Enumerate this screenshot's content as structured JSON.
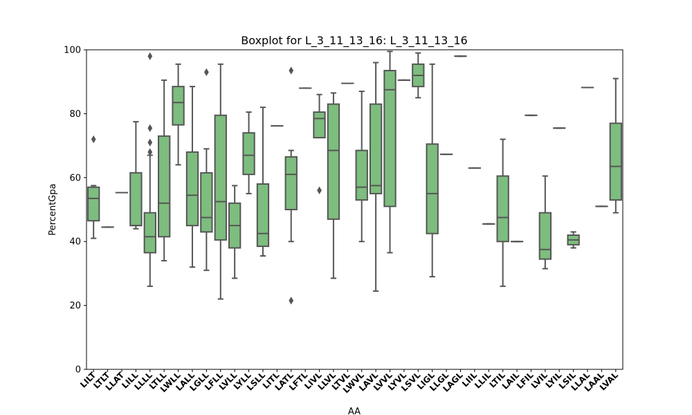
{
  "chart_data": {
    "type": "box",
    "title": "Boxplot for L_3_11_13_16: L_3_11_13_16",
    "xlabel": "AA",
    "ylabel": "PercentGpa",
    "ylim": [
      0,
      100
    ],
    "yticks": [
      0,
      20,
      40,
      60,
      80,
      100
    ],
    "grid": false,
    "colors": {
      "box_fill": "#7dbd7e",
      "box_edge": "#555555"
    },
    "categories": [
      "LILT",
      "LTLT",
      "LLAT",
      "LILL",
      "LLLL",
      "LTLL",
      "LWLL",
      "LALL",
      "LGLL",
      "LFLL",
      "LVLL",
      "LYLL",
      "LSLL",
      "LITL",
      "LATL",
      "LFTL",
      "LIVL",
      "LLVL",
      "LTVL",
      "LWVL",
      "LAVL",
      "LVVL",
      "LYVL",
      "LSVL",
      "LIGL",
      "LLGL",
      "LAGL",
      "LIIL",
      "LLIL",
      "LTIL",
      "LAIL",
      "LFIL",
      "LVIL",
      "LYIL",
      "LSIL",
      "LLAL",
      "LAAL",
      "LVAL"
    ],
    "boxes": [
      {
        "whislo": 41,
        "q1": 46.5,
        "med": 53.5,
        "q3": 57,
        "whishi": 57.5,
        "fliers": [
          72
        ]
      },
      {
        "whislo": 44.5,
        "q1": 44.5,
        "med": 44.5,
        "q3": 44.5,
        "whishi": 44.5,
        "fliers": []
      },
      {
        "whislo": 55.3,
        "q1": 55.3,
        "med": 55.3,
        "q3": 55.3,
        "whishi": 55.3,
        "fliers": []
      },
      {
        "whislo": 44,
        "q1": 45,
        "med": 45,
        "q3": 61.5,
        "whishi": 77.5,
        "fliers": []
      },
      {
        "whislo": 26,
        "q1": 36.5,
        "med": 41.5,
        "q3": 49,
        "whishi": 67,
        "fliers": [
          68,
          71,
          75.5,
          98
        ]
      },
      {
        "whislo": 34,
        "q1": 41.5,
        "med": 52,
        "q3": 73,
        "whishi": 90.5,
        "fliers": []
      },
      {
        "whislo": 64,
        "q1": 76.5,
        "med": 83.5,
        "q3": 88.5,
        "whishi": 95.5,
        "fliers": []
      },
      {
        "whislo": 32,
        "q1": 45,
        "med": 54.5,
        "q3": 68,
        "whishi": 88.5,
        "fliers": []
      },
      {
        "whislo": 31,
        "q1": 43,
        "med": 47.5,
        "q3": 61.5,
        "whishi": 69,
        "fliers": [
          93
        ]
      },
      {
        "whislo": 22,
        "q1": 40.5,
        "med": 52.5,
        "q3": 79.5,
        "whishi": 95.5,
        "fliers": []
      },
      {
        "whislo": 28.5,
        "q1": 38,
        "med": 45,
        "q3": 52,
        "whishi": 57.5,
        "fliers": []
      },
      {
        "whislo": 55,
        "q1": 61,
        "med": 67,
        "q3": 74,
        "whishi": 80.5,
        "fliers": []
      },
      {
        "whislo": 35.5,
        "q1": 38.5,
        "med": 42.5,
        "q3": 58,
        "whishi": 82,
        "fliers": []
      },
      {
        "whislo": 76.2,
        "q1": 76.2,
        "med": 76.2,
        "q3": 76.2,
        "whishi": 76.2,
        "fliers": []
      },
      {
        "whislo": 40,
        "q1": 50,
        "med": 61,
        "q3": 66.5,
        "whishi": 68.5,
        "fliers": [
          21.5,
          93.5
        ]
      },
      {
        "whislo": 88,
        "q1": 88,
        "med": 88,
        "q3": 88,
        "whishi": 88,
        "fliers": []
      },
      {
        "whislo": 72.5,
        "q1": 72.5,
        "med": 78.5,
        "q3": 80.5,
        "whishi": 86,
        "fliers": [
          56
        ]
      },
      {
        "whislo": 28.5,
        "q1": 47,
        "med": 68.5,
        "q3": 83,
        "whishi": 86.5,
        "fliers": []
      },
      {
        "whislo": 89.5,
        "q1": 89.5,
        "med": 89.5,
        "q3": 89.5,
        "whishi": 89.5,
        "fliers": []
      },
      {
        "whislo": 40,
        "q1": 53,
        "med": 57,
        "q3": 68.5,
        "whishi": 87,
        "fliers": []
      },
      {
        "whislo": 24.5,
        "q1": 55,
        "med": 57.5,
        "q3": 83,
        "whishi": 96,
        "fliers": []
      },
      {
        "whislo": 36.5,
        "q1": 51,
        "med": 87.5,
        "q3": 93.5,
        "whishi": 99.5,
        "fliers": []
      },
      {
        "whislo": 90.5,
        "q1": 90.5,
        "med": 90.5,
        "q3": 90.5,
        "whishi": 90.5,
        "fliers": []
      },
      {
        "whislo": 85,
        "q1": 88.5,
        "med": 92,
        "q3": 95.5,
        "whishi": 99,
        "fliers": []
      },
      {
        "whislo": 29,
        "q1": 42.5,
        "med": 55,
        "q3": 70.5,
        "whishi": 95.5,
        "fliers": []
      },
      {
        "whislo": 67.3,
        "q1": 67.3,
        "med": 67.3,
        "q3": 67.3,
        "whishi": 67.3,
        "fliers": []
      },
      {
        "whislo": 98,
        "q1": 98,
        "med": 98,
        "q3": 98,
        "whishi": 98,
        "fliers": []
      },
      {
        "whislo": 63,
        "q1": 63,
        "med": 63,
        "q3": 63,
        "whishi": 63,
        "fliers": []
      },
      {
        "whislo": 45.5,
        "q1": 45.5,
        "med": 45.5,
        "q3": 45.5,
        "whishi": 45.5,
        "fliers": []
      },
      {
        "whislo": 26,
        "q1": 40,
        "med": 47.5,
        "q3": 60.5,
        "whishi": 72,
        "fliers": []
      },
      {
        "whislo": 40,
        "q1": 40,
        "med": 40,
        "q3": 40,
        "whishi": 40,
        "fliers": []
      },
      {
        "whislo": 79.5,
        "q1": 79.5,
        "med": 79.5,
        "q3": 79.5,
        "whishi": 79.5,
        "fliers": []
      },
      {
        "whislo": 31.5,
        "q1": 34.5,
        "med": 37.5,
        "q3": 49,
        "whishi": 60.5,
        "fliers": []
      },
      {
        "whislo": 75.5,
        "q1": 75.5,
        "med": 75.5,
        "q3": 75.5,
        "whishi": 75.5,
        "fliers": []
      },
      {
        "whislo": 38,
        "q1": 39,
        "med": 40.5,
        "q3": 42,
        "whishi": 43,
        "fliers": []
      },
      {
        "whislo": 88.2,
        "q1": 88.2,
        "med": 88.2,
        "q3": 88.2,
        "whishi": 88.2,
        "fliers": []
      },
      {
        "whislo": 51,
        "q1": 51,
        "med": 51,
        "q3": 51,
        "whishi": 51,
        "fliers": []
      },
      {
        "whislo": 49,
        "q1": 53,
        "med": 63.5,
        "q3": 77,
        "whishi": 91,
        "fliers": []
      }
    ]
  }
}
